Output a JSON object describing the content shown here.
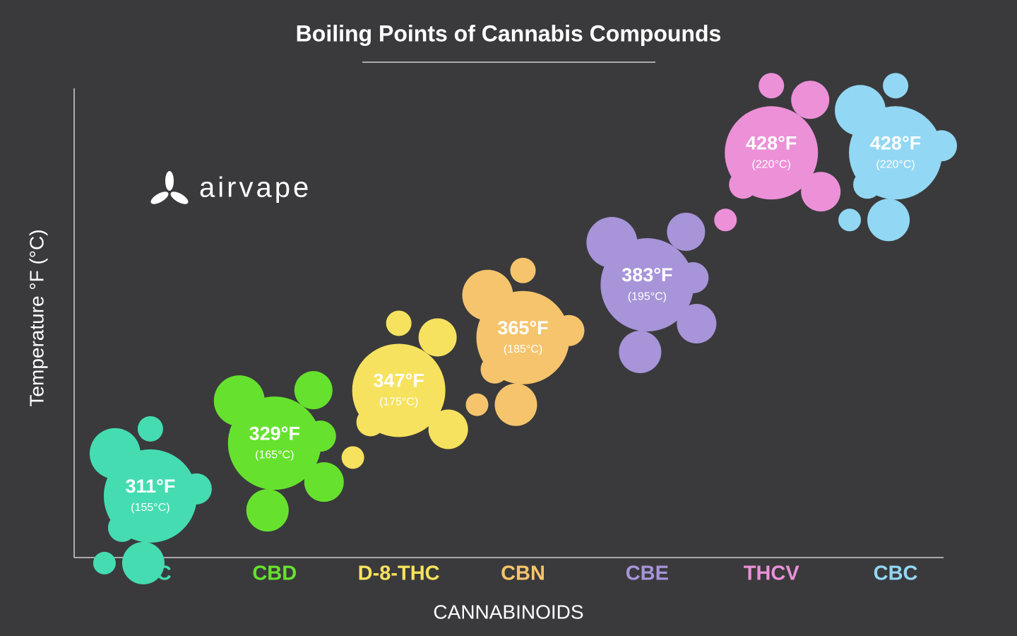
{
  "chart_data": {
    "type": "bubble",
    "title": "Boiling Points of Cannabis Compounds",
    "logo": "airvape",
    "x_label": "CANNABINOIDS",
    "y_label": "Temperature °F (°C)",
    "categories": [
      "THC",
      "CBD",
      "D-8-THC",
      "CBN",
      "CBE",
      "THCV",
      "CBC"
    ],
    "colors": [
      "#45dcb2",
      "#66e22e",
      "#f6e25e",
      "#f6c46c",
      "#a794d9",
      "#ec90d8",
      "#92d7f3"
    ],
    "values": [
      311,
      329,
      347,
      365,
      383,
      428,
      428
    ],
    "value_labels": [
      "311°F",
      "329°F",
      "347°F",
      "365°F",
      "383°F",
      "428°F",
      "428°F"
    ],
    "celsius": {
      "values": [
        155,
        165,
        175,
        185,
        195,
        220,
        220
      ],
      "value_labels": [
        "(155°C)",
        "(165°C)",
        "(175°C)",
        "(185°C)",
        "(195°C)",
        "(220°C)",
        "(220°C)"
      ]
    },
    "ylim": [
      290,
      450
    ]
  }
}
